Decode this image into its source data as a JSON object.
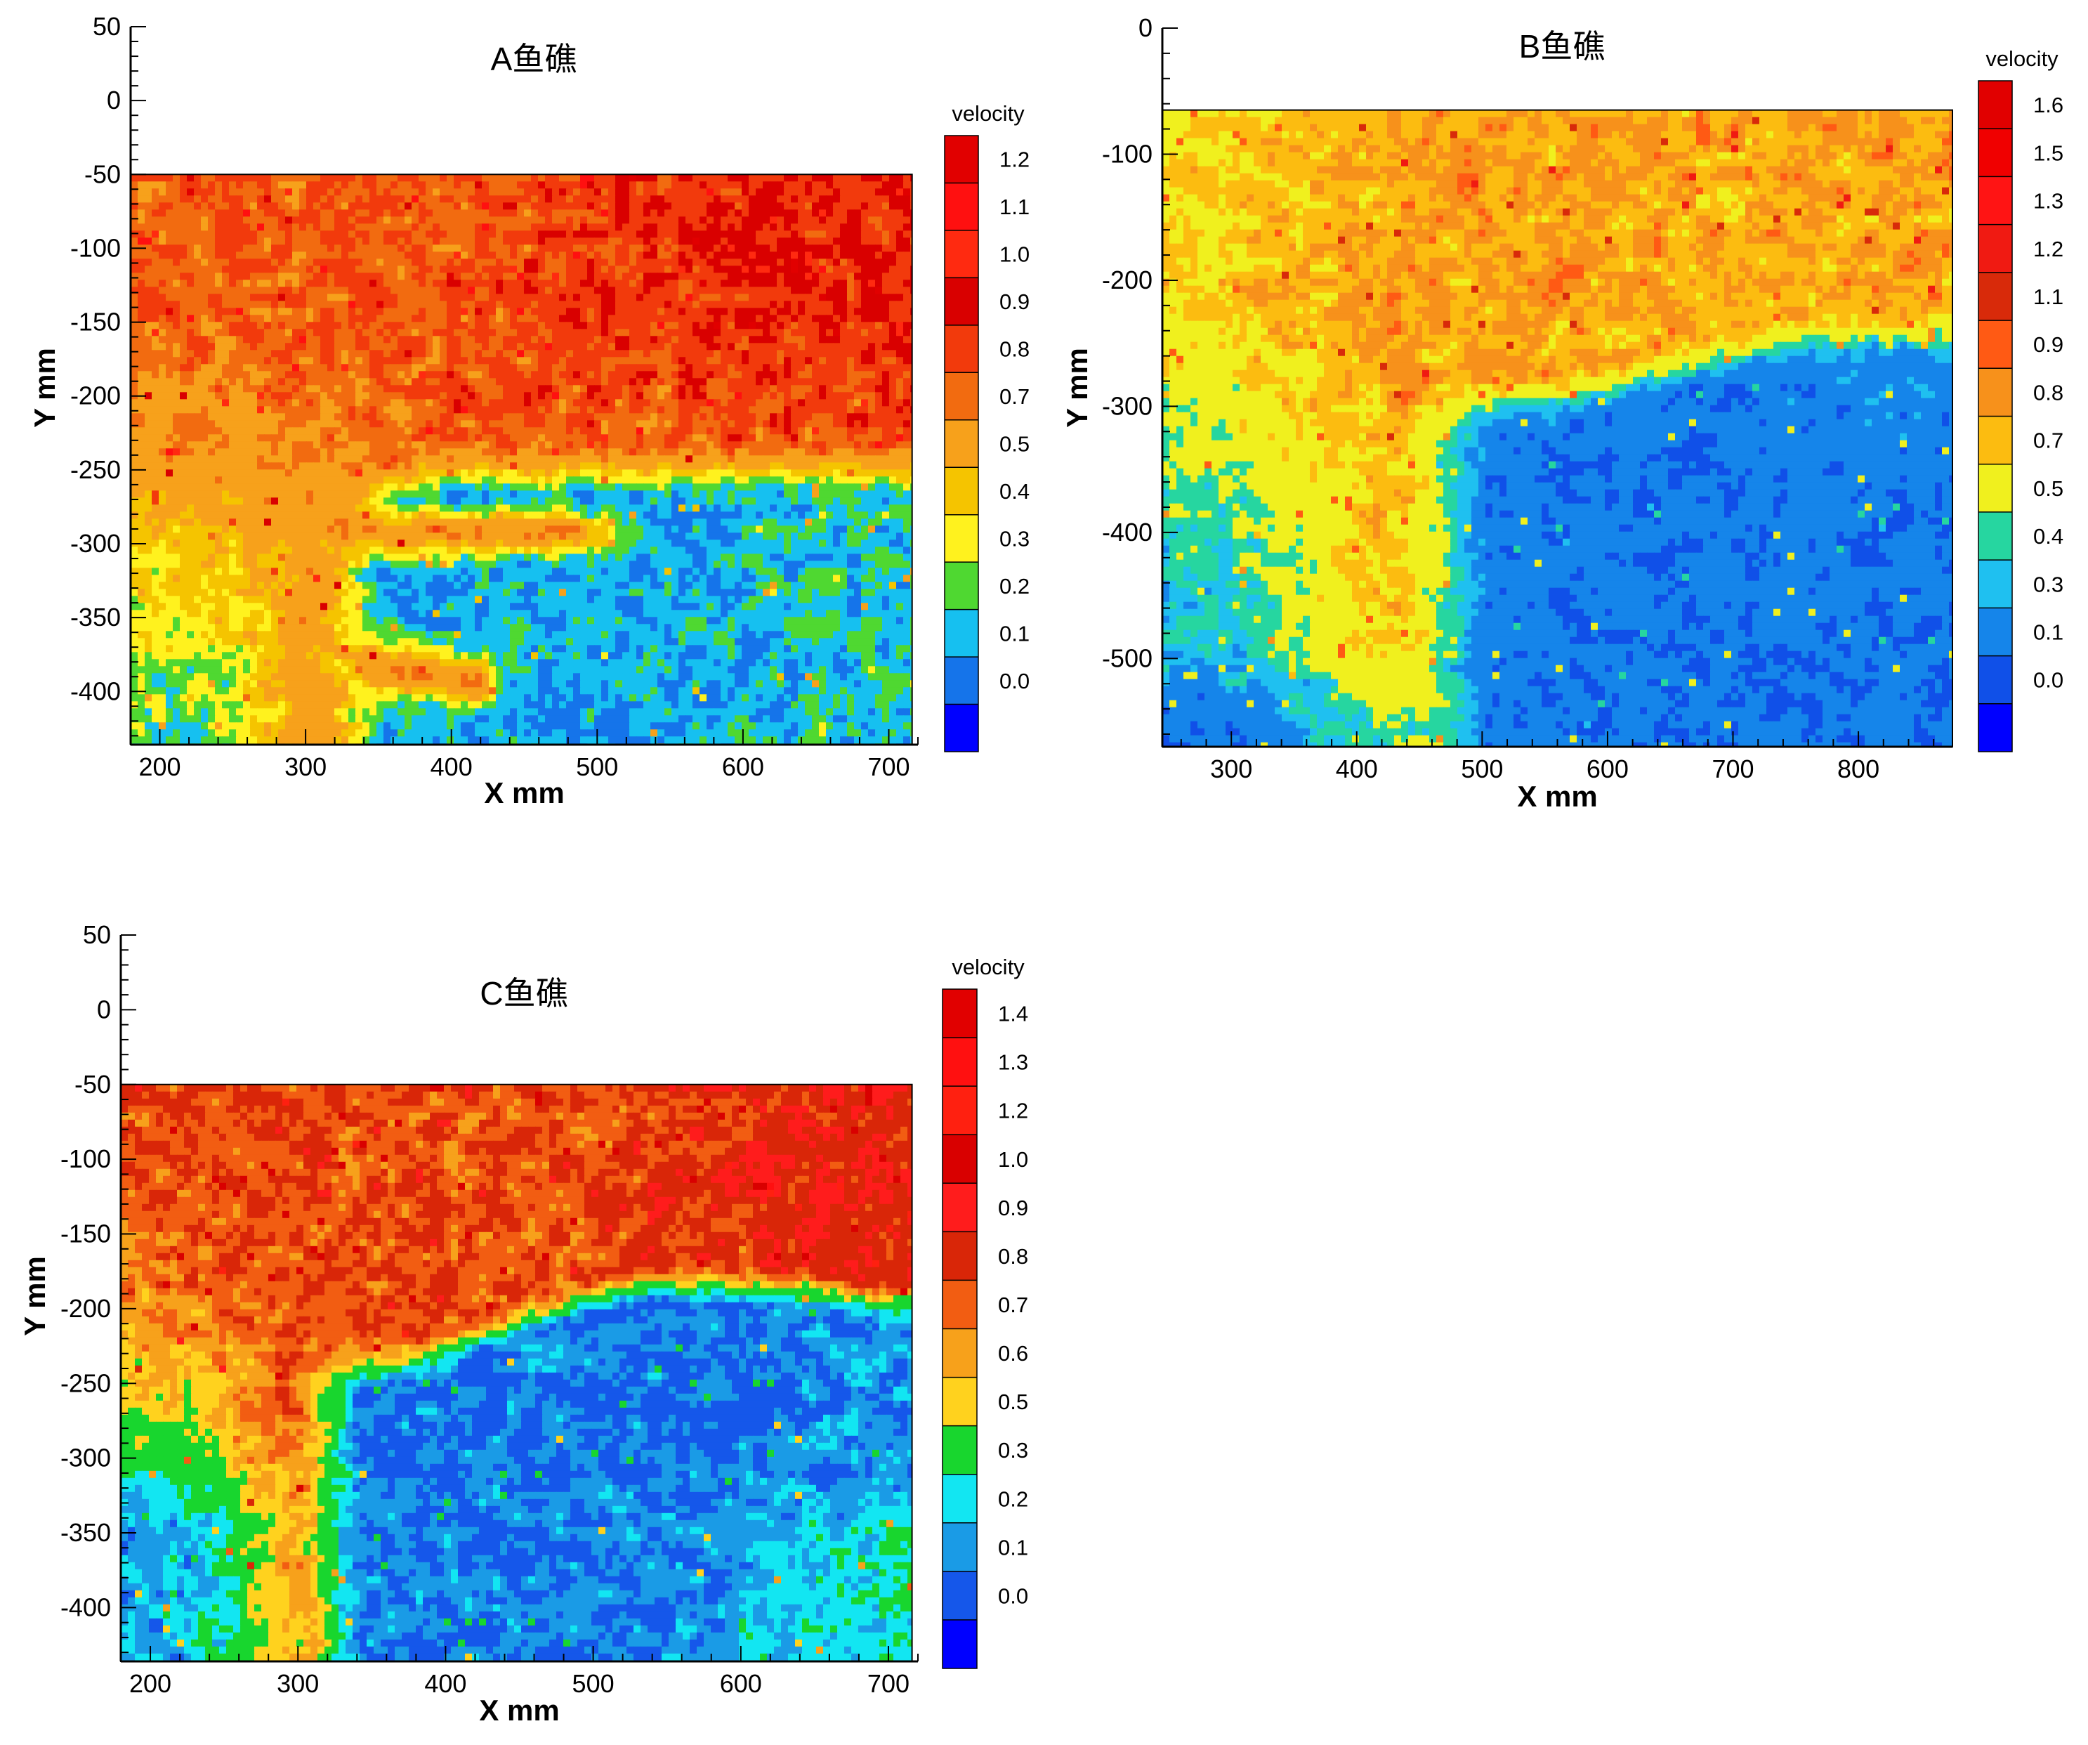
{
  "chart_data": [
    {
      "type": "heatmap",
      "title": "A鱼礁",
      "xlabel": "X mm",
      "ylabel": "Y mm",
      "xlim": [
        180,
        720
      ],
      "ylim": [
        -436,
        50
      ],
      "data_xlim": [
        180,
        716
      ],
      "data_ylim": [
        -436,
        -50
      ],
      "x_ticks": [
        200,
        300,
        400,
        500,
        600,
        700
      ],
      "y_ticks": [
        50,
        0,
        -50,
        -100,
        -150,
        -200,
        -250,
        -300,
        -350,
        -400
      ],
      "colorbar": {
        "title": "velocity",
        "labels": [
          "1.2",
          "1.1",
          "1.0",
          "0.9",
          "0.8",
          "0.7",
          "0.5",
          "0.4",
          "0.3",
          "0.2",
          "0.1",
          "0.0"
        ],
        "colors": [
          "#e10000",
          "#ff1010",
          "#ff2a10",
          "#d90000",
          "#f23a0c",
          "#f26b10",
          "#f7a11b",
          "#f5c400",
          "#fff21e",
          "#4fd831",
          "#16c0f0",
          "#1574ea",
          "#0000ff"
        ]
      },
      "field": {
        "description": "upper region high velocity ~0.7-1.0; low-velocity wake region (~0.1-0.2) behind reef between x 300-716, y -250 to -436, with high-velocity tongues near y -290 and y -380",
        "levels": [
          0.0,
          0.1,
          0.2,
          0.3,
          0.4,
          0.5,
          0.7,
          0.8,
          0.9,
          1.0,
          1.1,
          1.2
        ]
      }
    },
    {
      "type": "heatmap",
      "title": "B鱼礁",
      "xlabel": "X mm",
      "ylabel": "Y mm",
      "xlim": [
        245,
        875
      ],
      "ylim": [
        -570,
        0
      ],
      "data_xlim": [
        245,
        875
      ],
      "data_ylim": [
        -570,
        -65
      ],
      "x_ticks": [
        300,
        400,
        500,
        600,
        700,
        800
      ],
      "y_ticks": [
        0,
        -100,
        -200,
        -300,
        -400,
        -500
      ],
      "colorbar": {
        "title": "velocity",
        "labels": [
          "1.6",
          "1.5",
          "1.3",
          "1.2",
          "1.1",
          "0.9",
          "0.8",
          "0.7",
          "0.5",
          "0.4",
          "0.3",
          "0.1",
          "0.0"
        ],
        "colors": [
          "#e10000",
          "#f00000",
          "#ff1414",
          "#f01a12",
          "#d82a0a",
          "#ff5a14",
          "#f7911b",
          "#fcbc10",
          "#f0f01e",
          "#26d6a0",
          "#1fc0f0",
          "#1585ea",
          "#1050e8",
          "#0000ff"
        ]
      },
      "field": {
        "description": "upper region moderate-high velocity ~0.7-1.0; low-velocity region (~0.1-0.3) in lower right from x 420-875 below y -240",
        "levels": [
          0.0,
          0.1,
          0.3,
          0.4,
          0.5,
          0.7,
          0.8,
          0.9,
          1.1,
          1.2,
          1.3,
          1.5,
          1.6
        ]
      }
    },
    {
      "type": "heatmap",
      "title": "C鱼礁",
      "xlabel": "X mm",
      "ylabel": "Y mm",
      "xlim": [
        180,
        720
      ],
      "ylim": [
        -436,
        50
      ],
      "data_xlim": [
        180,
        716
      ],
      "data_ylim": [
        -436,
        -50
      ],
      "x_ticks": [
        200,
        300,
        400,
        500,
        600,
        700
      ],
      "y_ticks": [
        50,
        0,
        -50,
        -100,
        -150,
        -200,
        -250,
        -300,
        -350,
        -400
      ],
      "colorbar": {
        "title": "velocity",
        "labels": [
          "1.4",
          "1.3",
          "1.2",
          "1.0",
          "0.9",
          "0.8",
          "0.7",
          "0.6",
          "0.5",
          "0.3",
          "0.2",
          "0.1",
          "0.0"
        ],
        "colors": [
          "#e10000",
          "#ff1010",
          "#ff2010",
          "#d90000",
          "#ff1c1c",
          "#d92608",
          "#f25d12",
          "#f7a11b",
          "#ffd21e",
          "#18d62e",
          "#12e6f2",
          "#1a9be6",
          "#1557ea",
          "#0000ff"
        ]
      },
      "field": {
        "description": "upper region high velocity ~0.7-0.9; large low-velocity region (~0.1-0.2) from x 300-716 below y -190",
        "levels": [
          0.0,
          0.1,
          0.2,
          0.3,
          0.5,
          0.6,
          0.7,
          0.8,
          0.9,
          1.0,
          1.2,
          1.3,
          1.4
        ]
      }
    }
  ]
}
